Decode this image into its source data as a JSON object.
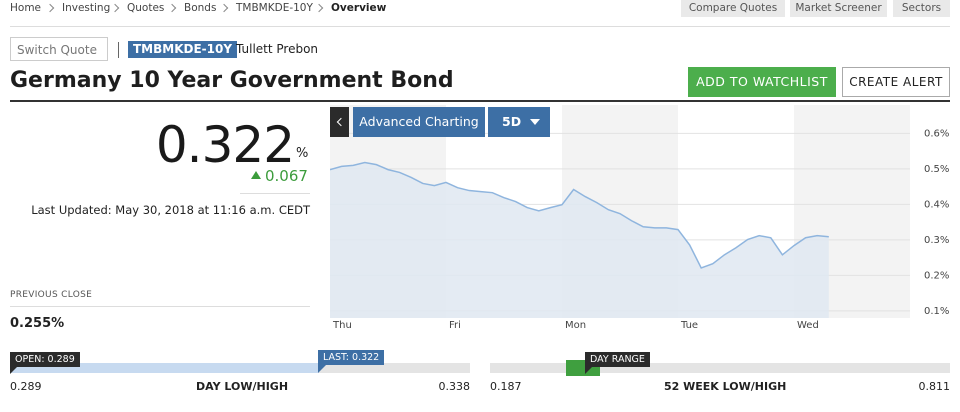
{
  "breadcrumb": [
    "Home",
    "Investing",
    "Quotes",
    "Bonds",
    "TMBMKDE-10Y",
    "Overview"
  ],
  "top_buttons": [
    "Compare Quotes",
    "Market Screener",
    "Sectors"
  ],
  "switch_quote": "Switch Quote",
  "symbol": "TMBMKDE-10Y",
  "source": "Tullett Prebon",
  "title": "Germany 10 Year Government Bond",
  "actions": [
    "ADD TO WATCHLIST",
    "CREATE ALERT"
  ],
  "quote": {
    "value": "0.322",
    "unit": "%",
    "change": "0.067",
    "last_updated": "Last Updated: May 30, 2018 at 11:16 a.m. CEDT"
  },
  "previous_close": {
    "label": "PREVIOUS CLOSE",
    "value": "0.255%"
  },
  "chart_controls": [
    "Advanced Charting",
    "5D"
  ],
  "chart_data": {
    "type": "line",
    "categories": [
      "Thu",
      null,
      null,
      null,
      null,
      null,
      null,
      null,
      null,
      null,
      "Fri",
      null,
      null,
      null,
      null,
      null,
      null,
      null,
      null,
      null,
      "Mon",
      null,
      null,
      null,
      null,
      null,
      null,
      null,
      null,
      null,
      "Tue",
      null,
      null,
      null,
      null,
      null,
      null,
      null,
      null,
      null,
      "Wed",
      null,
      null,
      null,
      null,
      null,
      null,
      null,
      null,
      null
    ],
    "values": [
      0.498,
      0.507,
      0.51,
      0.518,
      0.512,
      0.498,
      0.49,
      0.476,
      0.459,
      0.453,
      0.462,
      0.447,
      0.439,
      0.436,
      0.433,
      0.419,
      0.408,
      0.391,
      0.382,
      0.391,
      0.399,
      0.442,
      0.422,
      0.405,
      0.385,
      0.374,
      0.354,
      0.337,
      0.334,
      0.334,
      0.329,
      0.286,
      0.221,
      0.233,
      0.258,
      0.278,
      0.301,
      0.312,
      0.306,
      0.258,
      0.284,
      0.306,
      0.312,
      0.309,
      null,
      null,
      null,
      null,
      null,
      null
    ],
    "color": "#8fb5de",
    "area_color": "#dfe8f1",
    "ylim": [
      0.08,
      0.68
    ],
    "yticks": [
      {
        "value": 0.1,
        "label": "0.1%"
      },
      {
        "value": 0.2,
        "label": "0.2%"
      },
      {
        "value": 0.3,
        "label": "0.3%"
      },
      {
        "value": 0.4,
        "label": "0.4%"
      },
      {
        "value": 0.5,
        "label": "0.5%"
      },
      {
        "value": 0.6,
        "label": "0.6%"
      }
    ],
    "grid": true
  },
  "day_range": {
    "open": "OPEN: 0.289",
    "last": "LAST: 0.322",
    "low": "0.289",
    "label": "DAY LOW/HIGH",
    "high": "0.338"
  },
  "week52_range": {
    "marker": "DAY RANGE",
    "low": "0.187",
    "label": "52 WEEK LOW/HIGH",
    "high": "0.811"
  }
}
